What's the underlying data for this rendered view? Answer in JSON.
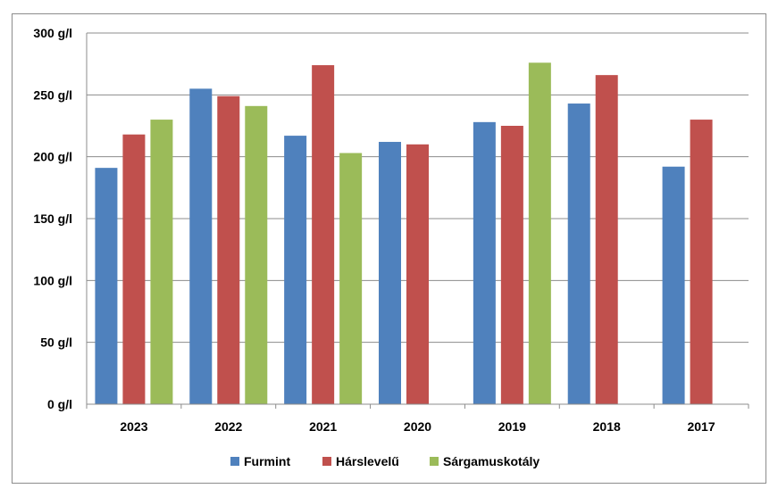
{
  "chart_data": {
    "type": "bar",
    "title": "",
    "xlabel": "",
    "ylabel": "",
    "categories": [
      "2023",
      "2022",
      "2021",
      "2020",
      "2019",
      "2018",
      "2017"
    ],
    "series": [
      {
        "name": "Furmint",
        "color": "#4f81bd",
        "values": [
          191,
          255,
          217,
          212,
          228,
          243,
          192
        ]
      },
      {
        "name": "Hárslevelű",
        "color": "#c0504d",
        "values": [
          218,
          249,
          274,
          210,
          225,
          266,
          230
        ]
      },
      {
        "name": "Sárgamuskotály",
        "color": "#9bbb59",
        "values": [
          230,
          241,
          203,
          null,
          276,
          null,
          null
        ]
      }
    ],
    "ylim": [
      0,
      300
    ],
    "yticks": [
      0,
      50,
      100,
      150,
      200,
      250,
      300
    ],
    "ytick_labels": [
      "0 g/l",
      "50 g/l",
      "100 g/l",
      "150 g/l",
      "200 g/l",
      "250 g/l",
      "300 g/l"
    ],
    "grid": true,
    "legend_position": "bottom"
  }
}
